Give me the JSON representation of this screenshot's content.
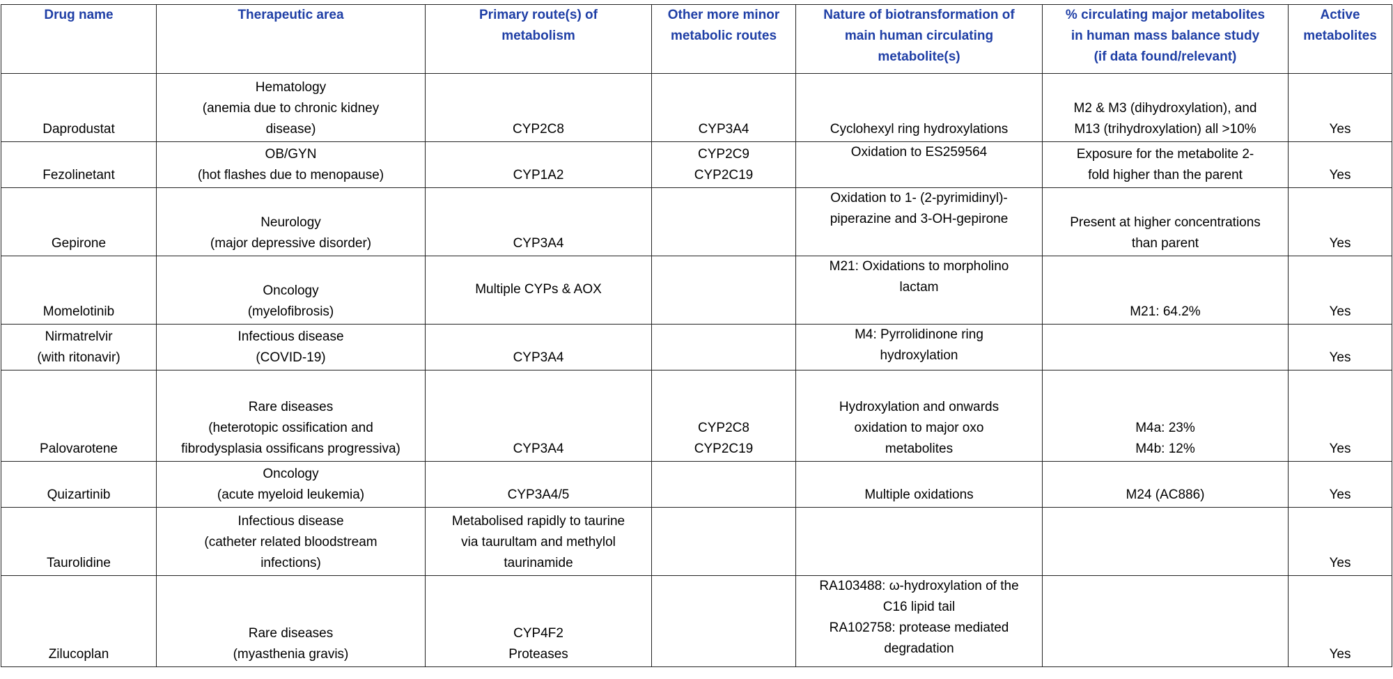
{
  "table": {
    "headers": [
      [
        "Drug name"
      ],
      [
        "Therapeutic area"
      ],
      [
        "Primary route(s) of",
        "metabolism"
      ],
      [
        "Other more minor",
        "metabolic routes"
      ],
      [
        "Nature of biotransformation of",
        "main human circulating",
        "metabolite(s)"
      ],
      [
        "% circulating major metabolites",
        "in human mass balance study",
        "(if data found/relevant)"
      ],
      [
        "Active",
        "metabolites"
      ]
    ],
    "rows": [
      [
        [
          "Daprodustat"
        ],
        [
          "Hematology",
          "(anemia due to chronic kidney",
          "disease)"
        ],
        [
          "CYP2C8"
        ],
        [
          "CYP3A4"
        ],
        [
          "Cyclohexyl ring hydroxylations"
        ],
        [
          "M2 & M3 (dihydroxylation), and",
          "M13 (trihydroxylation) all >10%"
        ],
        [
          "Yes"
        ]
      ],
      [
        [
          "Fezolinetant"
        ],
        [
          "OB/GYN",
          "(hot flashes due to menopause)"
        ],
        [
          "CYP1A2"
        ],
        [
          "CYP2C9",
          "CYP2C19"
        ],
        [
          "Oxidation to ES259564"
        ],
        [
          "Exposure for the metabolite 2-",
          "fold higher than the parent"
        ],
        [
          "Yes"
        ]
      ],
      [
        [
          "Gepirone"
        ],
        [
          "Neurology",
          "(major depressive disorder)"
        ],
        [
          "CYP3A4"
        ],
        [],
        [
          "Oxidation to 1- (2-pyrimidinyl)-",
          "piperazine and 3-OH-gepirone"
        ],
        [
          "Present at higher concentrations",
          "than parent"
        ],
        [
          "Yes"
        ]
      ],
      [
        [
          "Momelotinib"
        ],
        [
          "Oncology",
          "(myelofibrosis)"
        ],
        [
          "Multiple CYPs & AOX"
        ],
        [],
        [
          "M21: Oxidations to morpholino",
          "lactam"
        ],
        [
          "M21: 64.2%"
        ],
        [
          "Yes"
        ]
      ],
      [
        [
          "Nirmatrelvir",
          "(with ritonavir)"
        ],
        [
          "Infectious disease",
          "(COVID-19)"
        ],
        [
          "CYP3A4"
        ],
        [],
        [
          "M4: Pyrrolidinone ring",
          "hydroxylation"
        ],
        [],
        [
          "Yes"
        ]
      ],
      [
        [
          "Palovarotene"
        ],
        [
          "Rare diseases",
          "(heterotopic ossification and",
          "fibrodysplasia ossificans progressiva)"
        ],
        [
          "CYP3A4"
        ],
        [
          "CYP2C8",
          "CYP2C19"
        ],
        [
          "Hydroxylation and onwards",
          "oxidation to major oxo",
          "metabolites"
        ],
        [
          "M4a: 23%",
          "M4b: 12%"
        ],
        [
          "Yes"
        ]
      ],
      [
        [
          "Quizartinib"
        ],
        [
          "Oncology",
          "(acute myeloid leukemia)"
        ],
        [
          "CYP3A4/5"
        ],
        [],
        [
          "Multiple oxidations"
        ],
        [
          "M24 (AC886)"
        ],
        [
          "Yes"
        ]
      ],
      [
        [
          "Taurolidine"
        ],
        [
          "Infectious disease",
          "(catheter related bloodstream",
          "infections)"
        ],
        [
          "Metabolised rapidly to taurine",
          "via taurultam and methylol",
          "taurinamide"
        ],
        [],
        [],
        [],
        [
          "Yes"
        ]
      ],
      [
        [
          "Zilucoplan"
        ],
        [
          "Rare diseases",
          "(myasthenia gravis)"
        ],
        [
          "CYP4F2",
          "Proteases"
        ],
        [],
        [
          "RA103488: ω-hydroxylation of the",
          "C16 lipid tail",
          "RA102758: protease mediated",
          "degradation"
        ],
        [],
        [
          "Yes"
        ]
      ]
    ]
  }
}
